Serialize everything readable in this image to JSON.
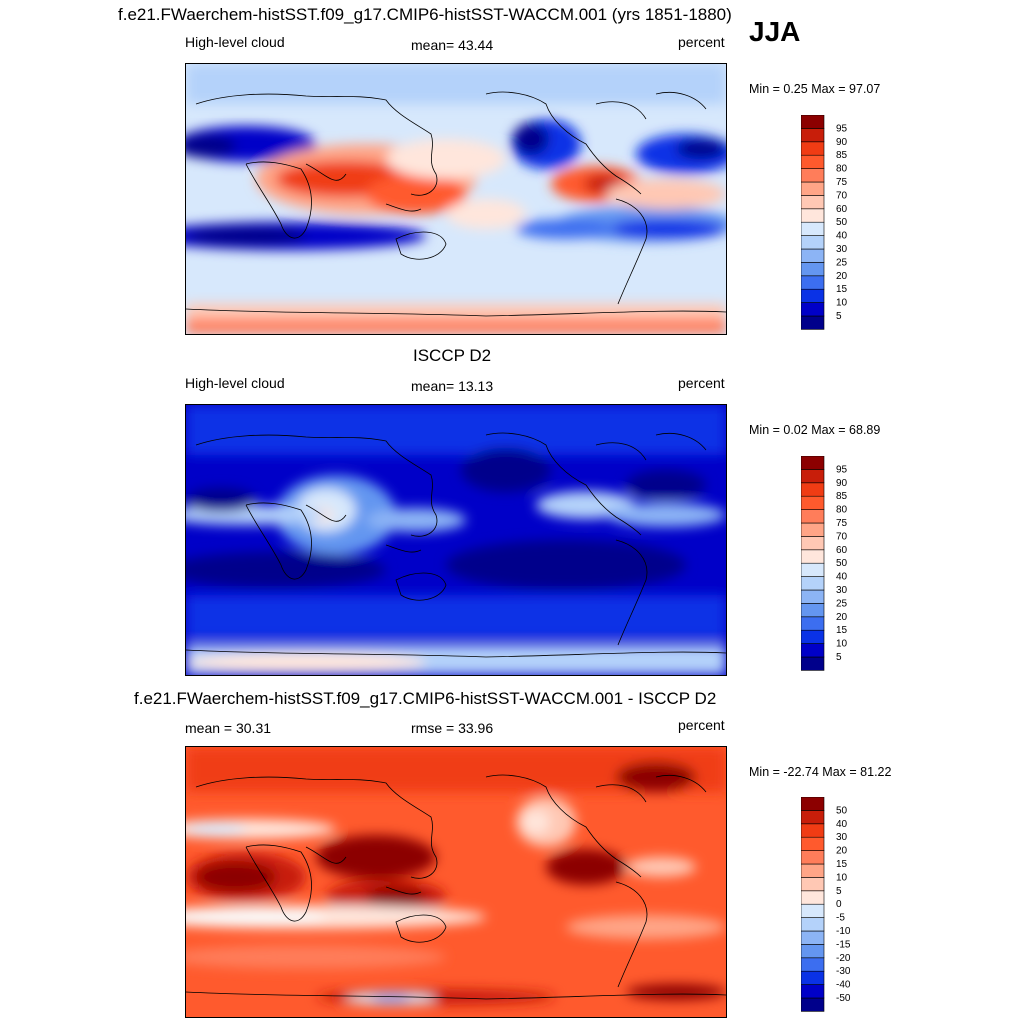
{
  "season": "JJA",
  "colors": {
    "scale_pos": [
      "#00008b",
      "#0000c8",
      "#0a32e6",
      "#3c6ef0",
      "#6496f0",
      "#8cb4f5",
      "#b4d2fa",
      "#d7e8fc",
      "#ffe6dc",
      "#ffc8b4",
      "#ffa587",
      "#ff7d5a",
      "#ff5a2d",
      "#f03c14",
      "#c81e0a",
      "#8c0000"
    ],
    "diff_scale": [
      "#00008b",
      "#0000c8",
      "#0a32e6",
      "#3c6ef0",
      "#6496f0",
      "#8cb4f5",
      "#b4d2fa",
      "#d7e8fc",
      "#fafafa",
      "#ffe6dc",
      "#ffc8b4",
      "#ffa587",
      "#ff7d5a",
      "#ff5a2d",
      "#f03c14",
      "#c81e0a",
      "#8c0000"
    ]
  },
  "panels": [
    {
      "title": "f.e21.FWaerchem-histSST.f09_g17.CMIP6-histSST-WACCM.001 (yrs 1851-1880)",
      "variable": "High-level cloud",
      "stat": "mean=  43.44",
      "units": "percent",
      "minmax": "Min =   0.25 Max =  97.07"
    },
    {
      "title": "ISCCP D2",
      "variable": "High-level cloud",
      "stat": "mean=  13.13",
      "units": "percent",
      "minmax": "Min =   0.02 Max =  68.89"
    },
    {
      "title": "f.e21.FWaerchem-histSST.f09_g17.CMIP6-histSST-WACCM.001 - ISCCP D2",
      "variable": "mean =  30.31",
      "stat": "rmse =  33.96",
      "units": "percent",
      "minmax": "Min = -22.74 Max =  81.22"
    }
  ],
  "chart_data": [
    {
      "type": "heatmap",
      "title": "f.e21.FWaerchem-histSST.f09_g17.CMIP6-histSST-WACCM.001 (yrs 1851-1880)",
      "subtitle": "High-level cloud",
      "units": "percent",
      "mean": 43.44,
      "min": 0.25,
      "max": 97.07,
      "colorbar_levels": [
        5,
        10,
        15,
        20,
        25,
        30,
        40,
        50,
        60,
        70,
        75,
        80,
        85,
        90,
        95
      ]
    },
    {
      "type": "heatmap",
      "title": "ISCCP D2",
      "subtitle": "High-level cloud",
      "units": "percent",
      "mean": 13.13,
      "min": 0.02,
      "max": 68.89,
      "colorbar_levels": [
        5,
        10,
        15,
        20,
        25,
        30,
        40,
        50,
        60,
        70,
        75,
        80,
        85,
        90,
        95
      ]
    },
    {
      "type": "heatmap",
      "title": "f.e21.FWaerchem-histSST.f09_g17.CMIP6-histSST-WACCM.001 - ISCCP D2",
      "units": "percent",
      "mean": 30.31,
      "rmse": 33.96,
      "min": -22.74,
      "max": 81.22,
      "colorbar_levels": [
        -50,
        -40,
        -30,
        -20,
        -15,
        -10,
        -5,
        0,
        5,
        10,
        15,
        20,
        30,
        40,
        50
      ]
    }
  ]
}
